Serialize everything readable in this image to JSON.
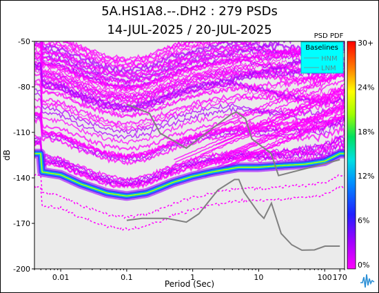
{
  "title_line1": "5A.HS1A8.--.DH2 : 279 PSDs",
  "title_line2": "14-JUL-2025 / 20-JUL-2025",
  "colors": {
    "background_plot": "#ebebeb",
    "baseline": "#808080",
    "legend_bg": "#00ffff",
    "magenta": "#ff00ff",
    "purple": "#a000ff"
  },
  "icon": "seismogram-logo-icon",
  "chart_data": {
    "type": "heatmap",
    "xlabel": "Period (Sec)",
    "ylabel": "dB",
    "x_scale": "log",
    "xlim": [
      0.004,
      200
    ],
    "ylim": [
      -200,
      -50
    ],
    "x_ticks": [
      {
        "value": 0.01,
        "label": "0.01"
      },
      {
        "value": 0.1,
        "label": "0.1"
      },
      {
        "value": 1,
        "label": "1"
      },
      {
        "value": 10,
        "label": "10"
      },
      {
        "value": 100,
        "label": "100"
      },
      {
        "value": 170,
        "label": "170"
      }
    ],
    "y_ticks": [
      -50,
      -80,
      -110,
      -140,
      -170,
      -200
    ],
    "legend": {
      "title": "Baselines",
      "entries": [
        "HNM",
        "LNM"
      ],
      "placement": "top-right"
    },
    "colorbar": {
      "title": "PSD PDF",
      "ticks": [
        "30+",
        "24%",
        "18%",
        "12%",
        "6%",
        "0%"
      ]
    },
    "series": [
      {
        "name": "HNM",
        "x": [
          0.1,
          0.22,
          0.32,
          0.8,
          3.8,
          4.6,
          6.3,
          7.9,
          15.4,
          20,
          170
        ],
        "y": [
          -91.5,
          -97.4,
          -110.5,
          -120.4,
          -98.2,
          -96.5,
          -101,
          -114.3,
          -123.9,
          -138.5,
          -128
        ]
      },
      {
        "name": "LNM",
        "x": [
          0.1,
          0.17,
          0.4,
          0.8,
          1.24,
          2.4,
          4.3,
          5.0,
          6.0,
          10,
          12,
          15.6,
          21.9,
          31.6,
          45,
          70,
          101,
          154,
          170
        ],
        "y": [
          -168,
          -166.7,
          -166.7,
          -169.2,
          -163.7,
          -148.1,
          -141.1,
          -141.1,
          -149.5,
          -163.2,
          -166.7,
          -156.7,
          -176.7,
          -184.1,
          -187.7,
          -187.5,
          -185,
          -185,
          -185
        ]
      }
    ],
    "pdf_mode_curve": {
      "x": [
        0.005,
        0.01,
        0.02,
        0.05,
        0.1,
        0.2,
        0.3,
        0.5,
        1,
        2,
        5,
        10,
        20,
        50,
        100,
        170
      ],
      "y": [
        -136,
        -138,
        -144,
        -150,
        -152,
        -150,
        -147,
        -143,
        -139,
        -136,
        -133,
        -133,
        -132,
        -131,
        -129,
        -124
      ]
    }
  }
}
